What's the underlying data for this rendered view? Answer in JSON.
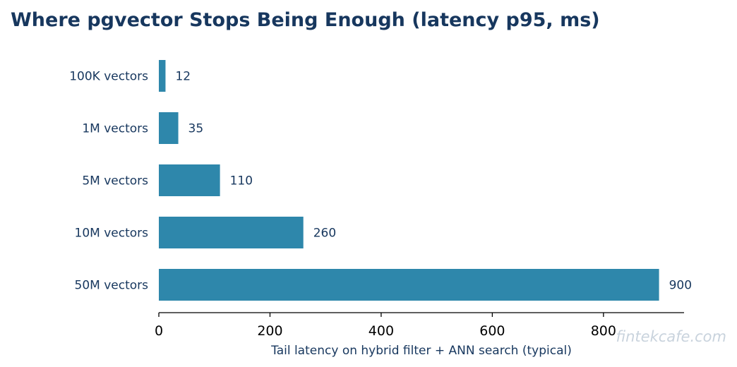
{
  "chart_data": {
    "type": "bar",
    "orientation": "horizontal",
    "title": "Where pgvector Stops Being Enough (latency p95, ms)",
    "categories": [
      "100K vectors",
      "1M vectors",
      "5M vectors",
      "10M vectors",
      "50M vectors"
    ],
    "values": [
      12,
      35,
      110,
      260,
      900
    ],
    "xlabel": "Tail latency on hybrid filter + ANN search (typical)",
    "ylabel": "",
    "xlim": [
      0,
      945
    ],
    "xticks": [
      0,
      200,
      400,
      600,
      800
    ],
    "grid": false,
    "bar_color": "#2e87ab",
    "text_color": "#17375e"
  },
  "watermark": "fintekcafe.com"
}
